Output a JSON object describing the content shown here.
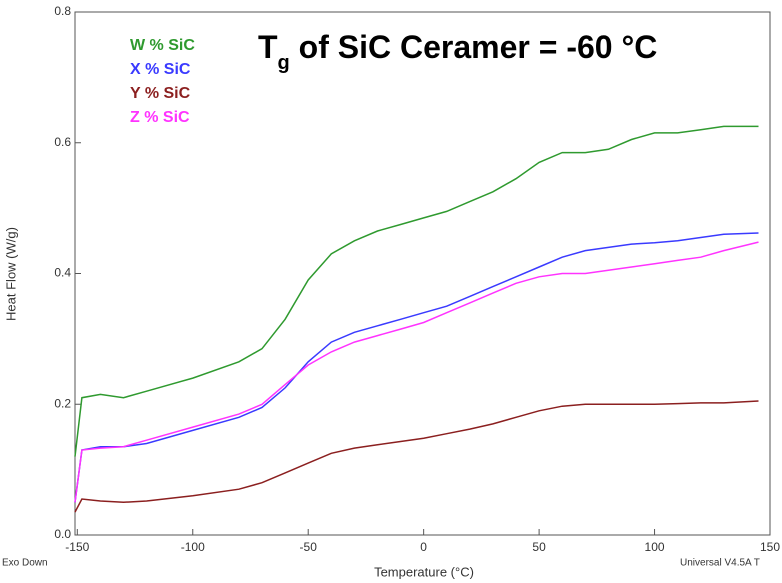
{
  "chart_data": {
    "type": "line",
    "title": {
      "main": "T",
      "subscript": "g",
      "rest": " of SiC Ceramer = -60 °C"
    },
    "x_label": "Temperature (°C)",
    "y_label": "Heat Flow (W/g)",
    "corner_left": "Exo Down",
    "corner_right": "Universal V4.5A T",
    "x": [
      -151,
      -148,
      -140,
      -130,
      -120,
      -100,
      -80,
      -70,
      -60,
      -50,
      -40,
      -30,
      -20,
      -10,
      0,
      10,
      20,
      30,
      40,
      50,
      60,
      70,
      80,
      90,
      100,
      110,
      120,
      130,
      145
    ],
    "series": [
      {
        "name": "W % SiC",
        "color": "#2f9a2f",
        "values": [
          0.12,
          0.21,
          0.215,
          0.21,
          0.22,
          0.24,
          0.265,
          0.285,
          0.33,
          0.39,
          0.43,
          0.45,
          0.465,
          0.475,
          0.485,
          0.495,
          0.51,
          0.525,
          0.545,
          0.57,
          0.585,
          0.585,
          0.59,
          0.605,
          0.615,
          0.615,
          0.62,
          0.625,
          0.625
        ]
      },
      {
        "name": "X % SiC",
        "color": "#3a3aff",
        "values": [
          0.05,
          0.13,
          0.135,
          0.135,
          0.14,
          0.16,
          0.18,
          0.195,
          0.225,
          0.265,
          0.295,
          0.31,
          0.32,
          0.33,
          0.34,
          0.35,
          0.365,
          0.38,
          0.395,
          0.41,
          0.425,
          0.435,
          0.44,
          0.445,
          0.447,
          0.45,
          0.455,
          0.46,
          0.462
        ]
      },
      {
        "name": "Y % SiC",
        "color": "#8b1f1f",
        "values": [
          0.035,
          0.055,
          0.052,
          0.05,
          0.052,
          0.06,
          0.07,
          0.08,
          0.095,
          0.11,
          0.125,
          0.133,
          0.138,
          0.143,
          0.148,
          0.155,
          0.162,
          0.17,
          0.18,
          0.19,
          0.197,
          0.2,
          0.2,
          0.2,
          0.2,
          0.201,
          0.202,
          0.202,
          0.205
        ]
      },
      {
        "name": "Z % SiC",
        "color": "#ff33ff",
        "values": [
          0.05,
          0.13,
          0.133,
          0.135,
          0.145,
          0.165,
          0.185,
          0.2,
          0.23,
          0.26,
          0.28,
          0.295,
          0.305,
          0.315,
          0.325,
          0.34,
          0.355,
          0.37,
          0.385,
          0.395,
          0.4,
          0.4,
          0.405,
          0.41,
          0.415,
          0.42,
          0.425,
          0.435,
          0.448
        ]
      }
    ],
    "xlim": [
      -151,
      150
    ],
    "ylim": [
      0,
      0.8
    ],
    "xticks": [
      -150,
      -100,
      -50,
      0,
      50,
      100,
      150
    ],
    "yticks": [
      {
        "value": 0,
        "label": "0.0"
      },
      {
        "value": 0.2,
        "label": "0.2"
      },
      {
        "value": 0.4,
        "label": "0.4"
      },
      {
        "value": 0.6,
        "label": "0.6"
      },
      {
        "value": 0.8,
        "label": "0.8"
      }
    ]
  }
}
